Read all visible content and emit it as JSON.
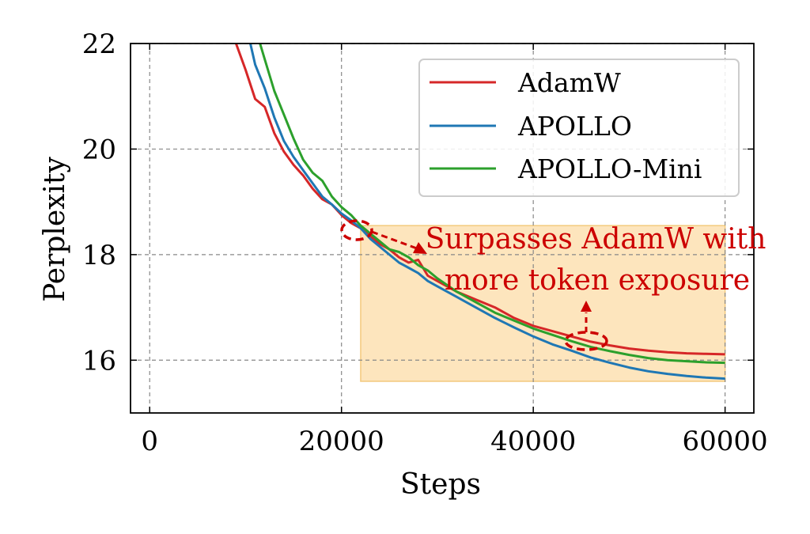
{
  "chart_data": {
    "type": "line",
    "title": "",
    "xlabel": "Steps",
    "ylabel": "Perplexity",
    "xlim": [
      -2000,
      63000
    ],
    "ylim": [
      15.0,
      22.0
    ],
    "xticks": [
      0,
      20000,
      40000,
      60000
    ],
    "xtick_labels": [
      "0",
      "20000",
      "40000",
      "60000"
    ],
    "yticks": [
      16,
      18,
      20,
      22
    ],
    "ytick_labels": [
      "16",
      "18",
      "20",
      "22"
    ],
    "grid": true,
    "legend_position": "top-right",
    "series": [
      {
        "name": "AdamW",
        "color": "#d62728",
        "x": [
          9000,
          10000,
          11000,
          12000,
          13000,
          14000,
          15000,
          16000,
          17000,
          18000,
          19000,
          20000,
          21000,
          22000,
          23000,
          24000,
          25000,
          26000,
          27000,
          28000,
          29000,
          30000,
          32000,
          34000,
          36000,
          38000,
          40000,
          42000,
          44000,
          46000,
          48000,
          50000,
          52000,
          54000,
          56000,
          58000,
          60000
        ],
        "y": [
          22.0,
          21.5,
          20.95,
          20.8,
          20.3,
          19.95,
          19.7,
          19.5,
          19.25,
          19.05,
          18.95,
          18.75,
          18.6,
          18.5,
          18.35,
          18.2,
          18.1,
          17.95,
          17.85,
          17.9,
          17.6,
          17.5,
          17.3,
          17.15,
          17.0,
          16.8,
          16.65,
          16.55,
          16.45,
          16.35,
          16.28,
          16.22,
          16.18,
          16.15,
          16.13,
          16.12,
          16.11
        ]
      },
      {
        "name": "APOLLO",
        "color": "#1f77b4",
        "x": [
          10500,
          11000,
          12000,
          13000,
          14000,
          15000,
          16000,
          17000,
          18000,
          19000,
          20000,
          21000,
          22000,
          23000,
          24000,
          25000,
          26000,
          27000,
          28000,
          29000,
          30000,
          32000,
          34000,
          36000,
          38000,
          40000,
          42000,
          44000,
          46000,
          48000,
          50000,
          52000,
          54000,
          56000,
          58000,
          60000
        ],
        "y": [
          22.0,
          21.6,
          21.15,
          20.6,
          20.15,
          19.85,
          19.6,
          19.35,
          19.1,
          18.95,
          18.78,
          18.65,
          18.5,
          18.3,
          18.15,
          18.0,
          17.85,
          17.75,
          17.65,
          17.5,
          17.4,
          17.2,
          17.0,
          16.8,
          16.62,
          16.45,
          16.3,
          16.18,
          16.05,
          15.95,
          15.86,
          15.79,
          15.74,
          15.7,
          15.67,
          15.65
        ]
      },
      {
        "name": "APOLLO-Mini",
        "color": "#2ca02c",
        "x": [
          11500,
          12000,
          13000,
          14000,
          15000,
          16000,
          17000,
          18000,
          19000,
          20000,
          21000,
          22000,
          23000,
          24000,
          25000,
          26000,
          27000,
          28000,
          29000,
          30000,
          32000,
          34000,
          36000,
          38000,
          40000,
          42000,
          44000,
          46000,
          48000,
          50000,
          52000,
          54000,
          56000,
          58000,
          60000
        ],
        "y": [
          22.0,
          21.7,
          21.1,
          20.65,
          20.2,
          19.8,
          19.55,
          19.4,
          19.1,
          18.9,
          18.75,
          18.55,
          18.4,
          18.25,
          18.1,
          18.05,
          17.95,
          17.8,
          17.7,
          17.55,
          17.3,
          17.1,
          16.9,
          16.75,
          16.6,
          16.48,
          16.36,
          16.25,
          16.17,
          16.1,
          16.04,
          16.0,
          15.98,
          15.96,
          15.95
        ]
      }
    ],
    "highlight_region": {
      "x": [
        22000,
        60000
      ],
      "y": [
        15.6,
        18.55
      ],
      "color": "#fde5bd"
    },
    "annotation": {
      "lines": [
        "Surpasses AdamW with",
        "more token exposure"
      ],
      "color": "#cc0000"
    }
  }
}
